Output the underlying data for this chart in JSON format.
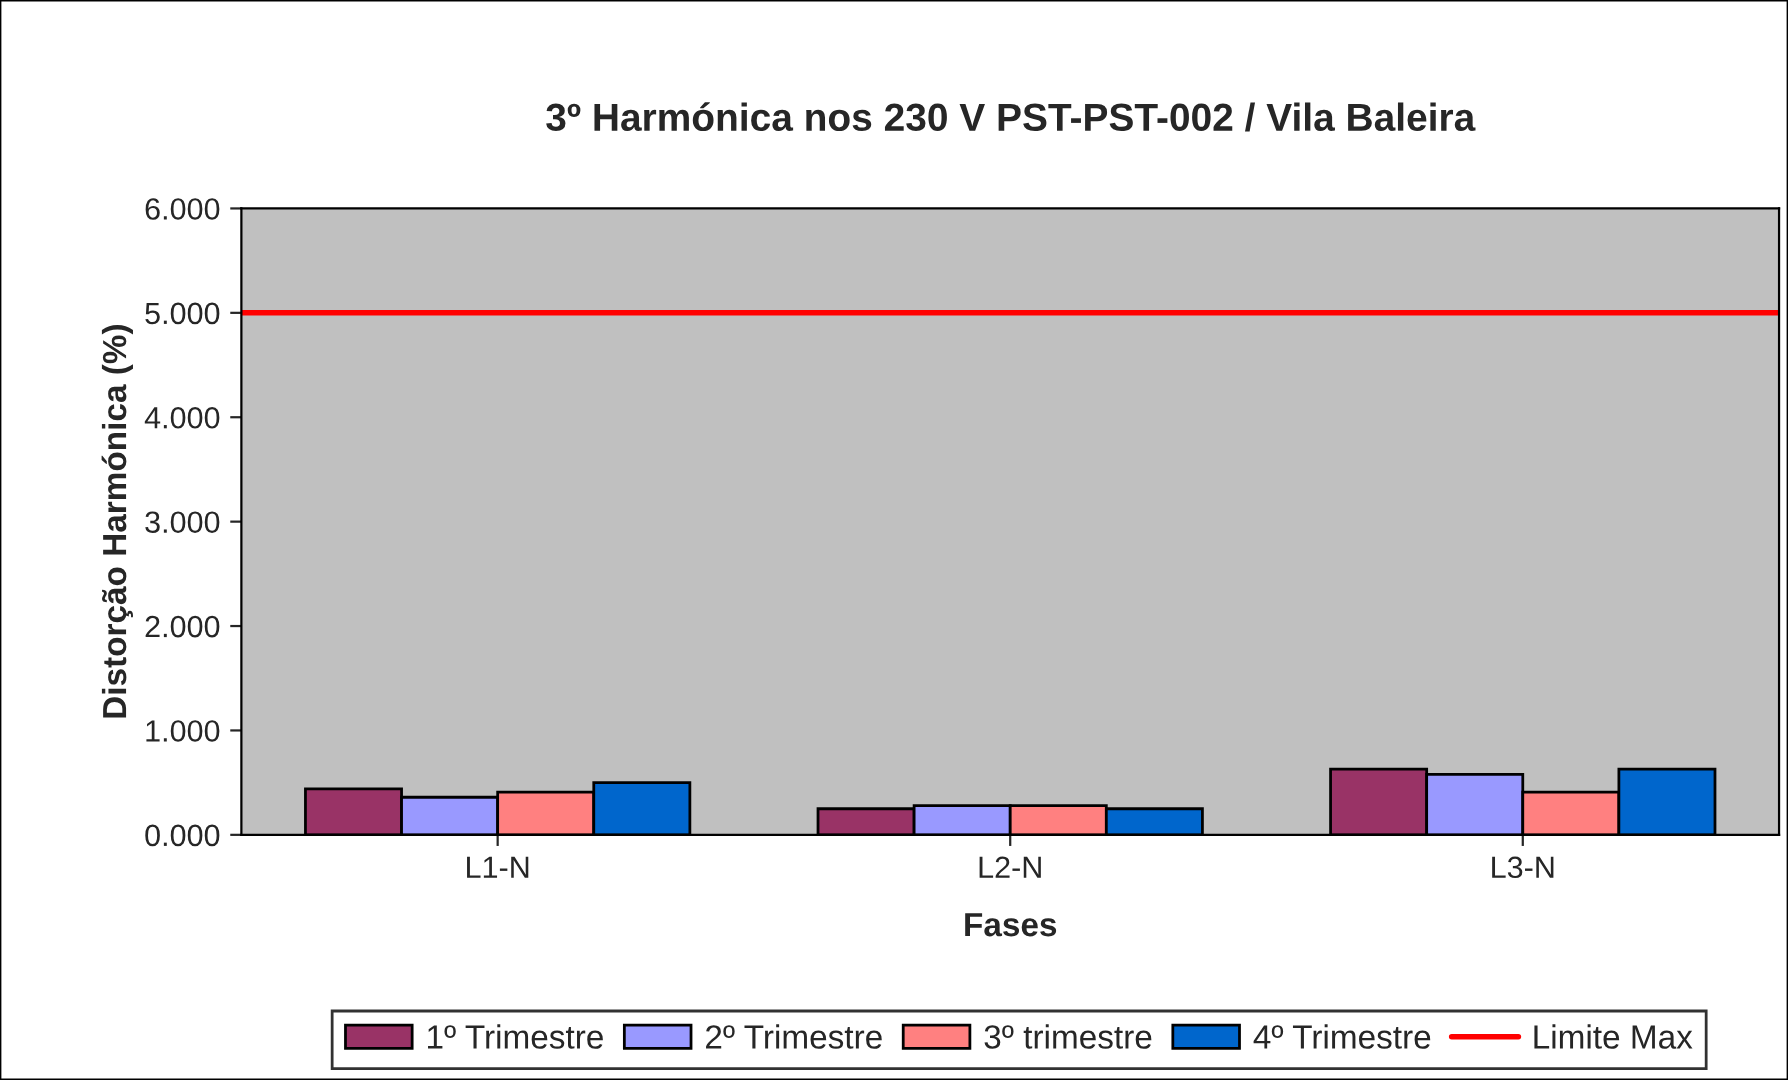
{
  "chart_data": {
    "type": "bar",
    "title": "3º Harmónica nos 230 V PST-PST-002 / Vila Baleira",
    "xlabel": "Fases",
    "ylabel": "Distorção Harmónica (%)",
    "categories": [
      "L1-N",
      "L2-N",
      "L3-N"
    ],
    "series": [
      {
        "name": "1º Trimestre",
        "color": "#993366",
        "values": [
          0.44,
          0.25,
          0.63
        ]
      },
      {
        "name": "2º Trimestre",
        "color": "#9999ff",
        "values": [
          0.36,
          0.28,
          0.58
        ]
      },
      {
        "name": "3º trimestre",
        "color": "#ff8080",
        "values": [
          0.41,
          0.28,
          0.41
        ]
      },
      {
        "name": "4º Trimestre",
        "color": "#0066cc",
        "values": [
          0.5,
          0.25,
          0.63
        ]
      }
    ],
    "ref_lines": [
      {
        "axis": "y",
        "value": 5,
        "label": "Limite Max",
        "color": "#ff0000",
        "line_style": "solid"
      }
    ],
    "ylim": [
      0,
      6
    ],
    "yticks": [
      {
        "value": 0,
        "label": "0.000"
      },
      {
        "value": 1,
        "label": "1.000"
      },
      {
        "value": 2,
        "label": "2.000"
      },
      {
        "value": 3,
        "label": "3.000"
      },
      {
        "value": 4,
        "label": "4.000"
      },
      {
        "value": 5,
        "label": "5.000"
      },
      {
        "value": 6,
        "label": "6.000"
      }
    ],
    "grid": false,
    "legend": "bottom"
  }
}
